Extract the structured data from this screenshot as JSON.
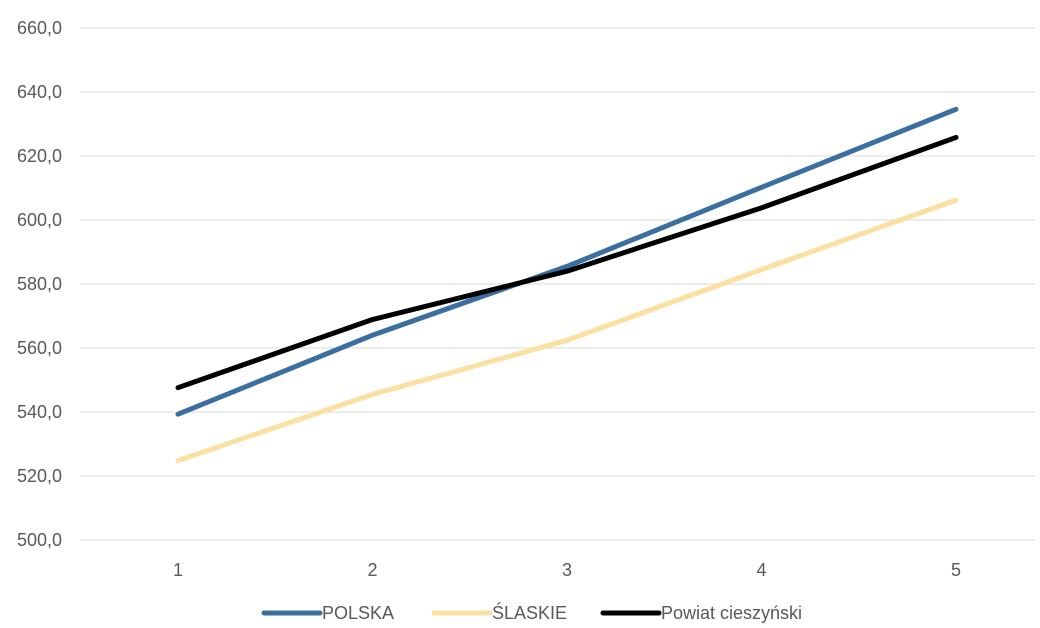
{
  "chart_data": {
    "type": "line",
    "title": "",
    "xlabel": "",
    "ylabel": "",
    "x": [
      "1",
      "2",
      "3",
      "4",
      "5"
    ],
    "ylim": [
      500,
      660
    ],
    "y_ticks": [
      500,
      520,
      540,
      560,
      580,
      600,
      620,
      640,
      660
    ],
    "y_tick_labels": [
      "500,0",
      "520,0",
      "540,0",
      "560,0",
      "580,0",
      "600,0",
      "620,0",
      "640,0",
      "660,0"
    ],
    "grid": "horizontal",
    "legend_position": "bottom",
    "series": [
      {
        "name": "POLSKA",
        "color": "#3b6fa0",
        "values": [
          539.3,
          564.0,
          585.5,
          610.2,
          634.6
        ]
      },
      {
        "name": "ŚLASKIE",
        "color": "#fbe0a1",
        "values": [
          524.8,
          545.5,
          562.4,
          584.5,
          606.2
        ]
      },
      {
        "name": "Powiat cieszyński",
        "color": "#000000",
        "values": [
          547.6,
          568.9,
          584.0,
          603.8,
          625.8
        ]
      }
    ]
  }
}
